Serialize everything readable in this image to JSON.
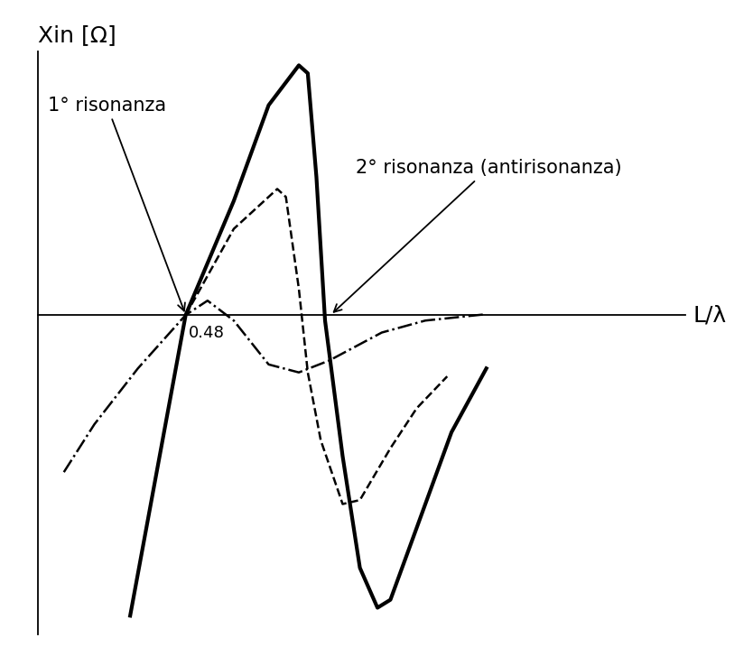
{
  "chart_data": {
    "type": "line",
    "y_label": "Xin [Ω]",
    "x_label": "L/λ",
    "xlim": [
      0,
      2.1
    ],
    "ylim": [
      -800,
      660
    ],
    "xticks": [],
    "yticks": [],
    "tick_labels": false,
    "grid": false,
    "series": [
      {
        "color": "#000000",
        "line_style": "solid",
        "x": [
          0.3,
          0.48,
          0.636,
          0.749,
          0.847,
          0.876,
          0.904,
          0.932,
          0.989,
          1.045,
          1.102,
          1.144,
          1.229,
          1.342,
          1.455
        ],
        "values": [
          -754,
          0,
          286,
          526,
          626,
          606,
          346,
          -14,
          -354,
          -634,
          -734,
          -714,
          -534,
          -294,
          -134
        ]
      },
      {
        "color": "#000000",
        "line_style": "dashed",
        "x": [
          0.48,
          0.636,
          0.777,
          0.805,
          0.847,
          0.876,
          0.918,
          0.989,
          1.045,
          1.144,
          1.229,
          1.328
        ],
        "values": [
          0,
          216,
          316,
          296,
          66,
          -144,
          -314,
          -474,
          -464,
          -334,
          -234,
          -154
        ]
      },
      {
        "color": "#000000",
        "line_style": "dashdot",
        "x": [
          0.085,
          0.184,
          0.325,
          0.48,
          0.551,
          0.636,
          0.749,
          0.847,
          0.946,
          1.116,
          1.257,
          1.455
        ],
        "values": [
          -394,
          -274,
          -134,
          0,
          36,
          -14,
          -124,
          -144,
          -114,
          -44,
          -14,
          2
        ]
      }
    ],
    "x_marker": {
      "text": "0.48",
      "x": 0.48
    },
    "annotations": [
      {
        "text": "1° risonanza",
        "x": 0.48,
        "y": 0
      },
      {
        "text": "2° risonanza (antirisonanza)",
        "x": 0.95,
        "y": 0
      }
    ]
  }
}
